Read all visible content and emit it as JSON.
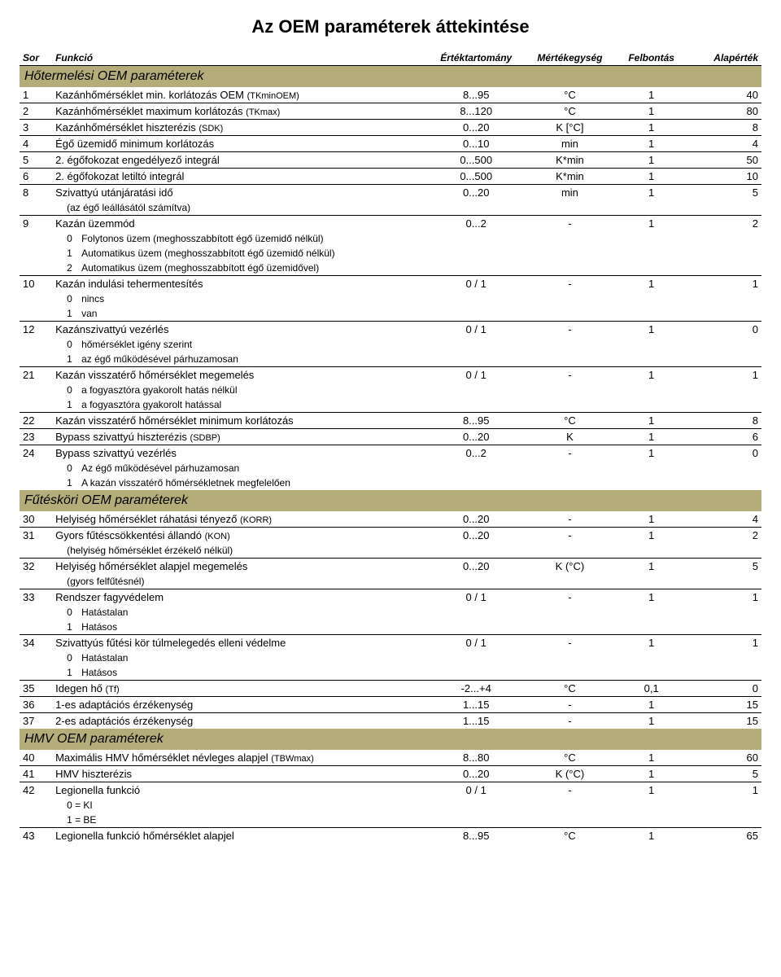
{
  "title": "Az OEM paraméterek áttekintése",
  "headers": {
    "sor": "Sor",
    "funkcio": "Funkció",
    "range": "Értéktartomány",
    "unit": "Mértékegység",
    "res": "Felbontás",
    "def": "Alapérték"
  },
  "sections": {
    "hot": "Hőtermelési OEM paraméterek",
    "fut": "Fűtésköri OEM paraméterek",
    "hmv": "HMV OEM paraméterek"
  },
  "r1": {
    "n": "1",
    "f": "Kazánhőmérséklet min. korlátozás OEM ",
    "code": "(TKminOEM)",
    "range": "8...95",
    "unit": "°C",
    "res": "1",
    "def": "40"
  },
  "r2": {
    "n": "2",
    "f": "Kazánhőmérséklet maximum korlátozás ",
    "code": "(TKmax)",
    "range": "8...120",
    "unit": "°C",
    "res": "1",
    "def": "80"
  },
  "r3": {
    "n": "3",
    "f": "Kazánhőmérséklet hiszterézis ",
    "code": "(SDK)",
    "range": "0...20",
    "unit": "K [°C]",
    "res": "1",
    "def": "8"
  },
  "r4": {
    "n": "4",
    "f": "Égő üzemidő minimum korlátozás",
    "range": "0...10",
    "unit": "min",
    "res": "1",
    "def": "4"
  },
  "r5": {
    "n": "5",
    "f": "2. égőfokozat engedélyező integrál",
    "range": "0...500",
    "unit": "K*min",
    "res": "1",
    "def": "50"
  },
  "r6": {
    "n": "6",
    "f": "2. égőfokozat letiltó integrál",
    "range": "0...500",
    "unit": "K*min",
    "res": "1",
    "def": "10"
  },
  "r8": {
    "n": "8",
    "f": "Szivattyú utánjáratási idő",
    "range": "0...20",
    "unit": "min",
    "res": "1",
    "def": "5"
  },
  "r8n": "(az égő leállásától számítva)",
  "r9": {
    "n": "9",
    "f": "Kazán üzemmód",
    "range": "0...2",
    "unit": "-",
    "res": "1",
    "def": "2"
  },
  "r9s": {
    "a": "Folytonos üzem (meghosszabbított égő üzemidő nélkül)",
    "b": "Automatikus üzem (meghosszabbított égő üzemidő nélkül)",
    "c": "Automatikus üzem (meghosszabbított égő üzemidővel)"
  },
  "r10": {
    "n": "10",
    "f": "Kazán indulási tehermentesítés",
    "range": "0 / 1",
    "unit": "-",
    "res": "1",
    "def": "1"
  },
  "r10s": {
    "a": "nincs",
    "b": "van"
  },
  "r12": {
    "n": "12",
    "f": "Kazánszivattyú vezérlés",
    "range": "0 / 1",
    "unit": "-",
    "res": "1",
    "def": "0"
  },
  "r12s": {
    "a": "hőmérséklet igény szerint",
    "b": "az égő működésével párhuzamosan"
  },
  "r21": {
    "n": "21",
    "f": "Kazán visszatérő hőmérséklet megemelés",
    "range": "0 / 1",
    "unit": "-",
    "res": "1",
    "def": "1"
  },
  "r21s": {
    "a": "a fogyasztóra gyakorolt hatás nélkül",
    "b": "a fogyasztóra gyakorolt hatással"
  },
  "r22": {
    "n": "22",
    "f": "Kazán visszatérő hőmérséklet minimum korlátozás",
    "range": "8...95",
    "unit": "°C",
    "res": "1",
    "def": "8"
  },
  "r23": {
    "n": "23",
    "f": "Bypass szivattyú hiszterézis ",
    "code": "(SDBP)",
    "range": "0...20",
    "unit": "K",
    "res": "1",
    "def": "6"
  },
  "r24": {
    "n": "24",
    "f": "Bypass szivattyú vezérlés",
    "range": "0...2",
    "unit": "-",
    "res": "1",
    "def": "0"
  },
  "r24s": {
    "a": "Az égő működésével párhuzamosan",
    "b": "A kazán visszatérő hőmérsékletnek megfelelően"
  },
  "r30": {
    "n": "30",
    "f": "Helyiség hőmérséklet ráhatási tényező ",
    "code": "(KORR)",
    "range": "0...20",
    "unit": "-",
    "res": "1",
    "def": "4"
  },
  "r31": {
    "n": "31",
    "f": "Gyors fűtéscsökkentési állandó ",
    "code": "(KON)",
    "range": "0...20",
    "unit": "-",
    "res": "1",
    "def": "2"
  },
  "r31n": "(helyiség hőmérséklet érzékelő nélkül)",
  "r32": {
    "n": "32",
    "f": "Helyiség hőmérséklet alapjel megemelés",
    "range": "0...20",
    "unit": "K (°C)",
    "res": "1",
    "def": "5"
  },
  "r32n": "(gyors felfűtésnél)",
  "r33": {
    "n": "33",
    "f": "Rendszer fagyvédelem",
    "range": "0 / 1",
    "unit": "-",
    "res": "1",
    "def": "1"
  },
  "r33s": {
    "a": "Hatástalan",
    "b": "Hatásos"
  },
  "r34": {
    "n": "34",
    "f": "Szivattyús fűtési kör túlmelegedés elleni védelme",
    "range": "0 / 1",
    "unit": "-",
    "res": "1",
    "def": "1"
  },
  "r34s": {
    "a": "Hatástalan",
    "b": "Hatásos"
  },
  "r35": {
    "n": "35",
    "f": "Idegen hő ",
    "code": "(Tf)",
    "range": "-2...+4",
    "unit": "°C",
    "res": "0,1",
    "def": "0"
  },
  "r36": {
    "n": "36",
    "f": "1-es adaptációs érzékenység",
    "range": "1...15",
    "unit": "-",
    "res": "1",
    "def": "15"
  },
  "r37": {
    "n": "37",
    "f": "2-es adaptációs érzékenység",
    "range": "1...15",
    "unit": "-",
    "res": "1",
    "def": "15"
  },
  "r40": {
    "n": "40",
    "f": "Maximális HMV hőmérséklet névleges alapjel ",
    "code": "(TBWmax)",
    "range": "8...80",
    "unit": "°C",
    "res": "1",
    "def": "60"
  },
  "r41": {
    "n": "41",
    "f": "HMV hiszterézis",
    "range": "0...20",
    "unit": "K (°C)",
    "res": "1",
    "def": "5"
  },
  "r42": {
    "n": "42",
    "f": "Legionella funkció",
    "range": "0 / 1",
    "unit": "-",
    "res": "1",
    "def": "1"
  },
  "r42s": {
    "a": "0 = KI",
    "b": "1 = BE"
  },
  "r43": {
    "n": "43",
    "f": "Legionella funkció hőmérséklet alapjel",
    "range": "8...95",
    "unit": "°C",
    "res": "1",
    "def": "65"
  }
}
